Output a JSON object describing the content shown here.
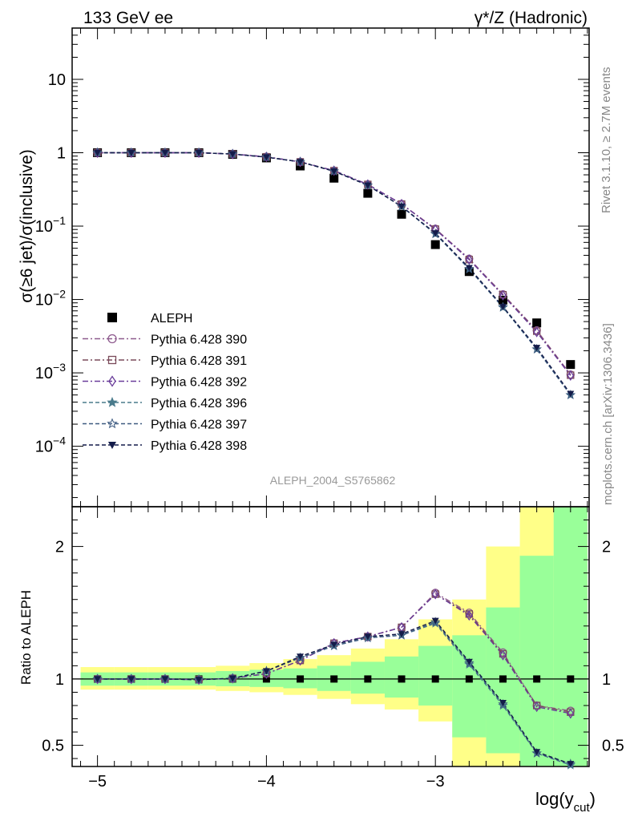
{
  "header": {
    "left": "133 GeV ee",
    "right": "γ*/Z (Hadronic)"
  },
  "side_labels": {
    "rivet": "Rivet 3.1.10, ≥ 2.7M events",
    "mcplots": "mcplots.cern.ch [arXiv:1306.3436]"
  },
  "analysis_label": "ALEPH_2004_S5765862",
  "chart_data": [
    {
      "type": "scatter",
      "panel": "main",
      "ylabel": "σ(≥6 jet)/σ(inclusive)",
      "yscale": "log",
      "xlim": [
        -5.15,
        -2.09
      ],
      "ylim": [
        1.5e-05,
        50
      ],
      "y_tick_labels": [
        "10^-4",
        "10^-3",
        "10^-2",
        "10^-1",
        "1",
        "10"
      ],
      "x": [
        -5.0,
        -4.8,
        -4.6,
        -4.4,
        -4.2,
        -4.0,
        -3.8,
        -3.6,
        -3.4,
        -3.2,
        -3.0,
        -2.8,
        -2.6,
        -2.4,
        -2.2
      ],
      "series": [
        {
          "name": "ALEPH",
          "color": "#000000",
          "marker": "square-filled",
          "values": [
            1.0,
            1.0,
            1.0,
            1.0,
            0.95,
            0.85,
            0.66,
            0.45,
            0.28,
            0.145,
            0.056,
            0.024,
            0.0098,
            0.0048,
            0.0013
          ]
        },
        {
          "name": "Pythia 6.428 390",
          "color": "#8e5a8e",
          "marker": "circle-open",
          "dash": "7,3,2,3",
          "values": [
            1.0,
            1.0,
            1.0,
            1.0,
            0.96,
            0.88,
            0.75,
            0.57,
            0.37,
            0.2,
            0.092,
            0.036,
            0.0118,
            0.0038,
            0.00095
          ]
        },
        {
          "name": "Pythia 6.428 391",
          "color": "#7a4a5a",
          "marker": "square-open",
          "dash": "7,3,2,3",
          "values": [
            1.0,
            1.0,
            1.0,
            1.0,
            0.96,
            0.88,
            0.75,
            0.57,
            0.37,
            0.2,
            0.091,
            0.035,
            0.0116,
            0.0037,
            0.00093
          ]
        },
        {
          "name": "Pythia 6.428 392",
          "color": "#6a3d9a",
          "marker": "diamond-open",
          "dash": "7,3,2,3",
          "values": [
            1.0,
            1.0,
            1.0,
            1.0,
            0.96,
            0.88,
            0.75,
            0.57,
            0.37,
            0.2,
            0.09,
            0.035,
            0.0114,
            0.0036,
            0.00092
          ]
        },
        {
          "name": "Pythia 6.428 396",
          "color": "#4a7b8c",
          "marker": "star-filled",
          "dash": "5,3",
          "values": [
            1.0,
            1.0,
            1.0,
            1.0,
            0.96,
            0.87,
            0.75,
            0.56,
            0.36,
            0.185,
            0.078,
            0.026,
            0.0078,
            0.0021,
            0.0005
          ]
        },
        {
          "name": "Pythia 6.428 397",
          "color": "#3d5a80",
          "marker": "star-open",
          "dash": "5,3",
          "values": [
            1.0,
            1.0,
            1.0,
            1.0,
            0.96,
            0.87,
            0.75,
            0.56,
            0.36,
            0.185,
            0.079,
            0.026,
            0.0079,
            0.0021,
            0.0005
          ]
        },
        {
          "name": "Pythia 6.428 398",
          "color": "#141c4a",
          "marker": "triangle-down-filled",
          "dash": "5,3",
          "values": [
            1.0,
            1.0,
            1.0,
            1.0,
            0.96,
            0.87,
            0.75,
            0.56,
            0.36,
            0.186,
            0.08,
            0.027,
            0.008,
            0.0022,
            0.00052
          ]
        }
      ],
      "legend": "bottom-left"
    },
    {
      "type": "line",
      "panel": "ratio",
      "xlabel": "log(y_cut)",
      "ylabel": "Ratio to ALEPH",
      "ylim": [
        0.34,
        2.3
      ],
      "xlim": [
        -5.15,
        -2.09
      ],
      "x_ticks": [
        -5,
        -4,
        -3
      ],
      "x_tick_labels": [
        "−5",
        "−4",
        "−3"
      ],
      "y_ticks": [
        0.5,
        1,
        2
      ],
      "y_tick_labels": [
        "0.5",
        "1",
        "2"
      ],
      "bin_edges": [
        -5.1,
        -4.9,
        -4.7,
        -4.5,
        -4.3,
        -4.1,
        -3.9,
        -3.7,
        -3.5,
        -3.3,
        -3.1,
        -2.9,
        -2.7,
        -2.5,
        -2.3,
        -2.1
      ],
      "band_yellow": {
        "color": "#ffff88",
        "lower": [
          0.92,
          0.92,
          0.92,
          0.92,
          0.91,
          0.9,
          0.88,
          0.85,
          0.81,
          0.77,
          0.68,
          0.34,
          0.34,
          0.34,
          0.34
        ],
        "upper": [
          1.09,
          1.09,
          1.09,
          1.09,
          1.1,
          1.12,
          1.15,
          1.18,
          1.23,
          1.3,
          1.45,
          1.6,
          2.0,
          2.3,
          2.3
        ]
      },
      "band_green": {
        "color": "#99ff99",
        "lower": [
          0.95,
          0.95,
          0.95,
          0.95,
          0.945,
          0.94,
          0.93,
          0.91,
          0.89,
          0.86,
          0.8,
          0.56,
          0.44,
          0.34,
          0.34
        ],
        "upper": [
          1.05,
          1.05,
          1.05,
          1.05,
          1.06,
          1.07,
          1.08,
          1.1,
          1.13,
          1.17,
          1.25,
          1.33,
          1.54,
          1.93,
          2.3
        ]
      },
      "x": [
        -5.0,
        -4.8,
        -4.6,
        -4.4,
        -4.2,
        -4.0,
        -3.8,
        -3.6,
        -3.4,
        -3.2,
        -3.0,
        -2.8,
        -2.6,
        -2.4,
        -2.2
      ],
      "series": [
        {
          "name": "Pythia 6.428 390",
          "color": "#8e5a8e",
          "marker": "circle-open",
          "dash": "7,3,2,3",
          "values": [
            1.0,
            1.0,
            1.0,
            0.995,
            1.005,
            1.04,
            1.14,
            1.27,
            1.32,
            1.39,
            1.65,
            1.5,
            1.2,
            0.8,
            0.76
          ]
        },
        {
          "name": "Pythia 6.428 391",
          "color": "#7a4a5a",
          "marker": "square-open",
          "dash": "7,3,2,3",
          "values": [
            1.0,
            1.0,
            1.0,
            0.995,
            1.005,
            1.04,
            1.14,
            1.27,
            1.32,
            1.39,
            1.64,
            1.49,
            1.19,
            0.8,
            0.75
          ]
        },
        {
          "name": "Pythia 6.428 392",
          "color": "#6a3d9a",
          "marker": "diamond-open",
          "dash": "7,3,2,3",
          "values": [
            1.0,
            1.0,
            1.0,
            0.995,
            1.005,
            1.04,
            1.14,
            1.27,
            1.32,
            1.39,
            1.64,
            1.48,
            1.18,
            0.79,
            0.74
          ]
        },
        {
          "name": "Pythia 6.428 396",
          "color": "#4a7b8c",
          "marker": "star-filled",
          "dash": "5,3",
          "values": [
            1.0,
            1.0,
            1.0,
            0.995,
            1.005,
            1.06,
            1.16,
            1.25,
            1.31,
            1.33,
            1.42,
            1.11,
            0.8,
            0.44,
            0.35
          ]
        },
        {
          "name": "Pythia 6.428 397",
          "color": "#3d5a80",
          "marker": "star-open",
          "dash": "5,3",
          "values": [
            1.0,
            1.0,
            1.0,
            0.995,
            1.005,
            1.06,
            1.16,
            1.25,
            1.31,
            1.33,
            1.43,
            1.12,
            0.81,
            0.44,
            0.36
          ]
        },
        {
          "name": "Pythia 6.428 398",
          "color": "#141c4a",
          "marker": "triangle-down-filled",
          "dash": "5,3",
          "values": [
            1.0,
            1.0,
            1.0,
            0.995,
            1.005,
            1.06,
            1.17,
            1.26,
            1.32,
            1.34,
            1.44,
            1.13,
            0.82,
            0.45,
            0.36
          ]
        }
      ],
      "reference_line": 1
    }
  ]
}
